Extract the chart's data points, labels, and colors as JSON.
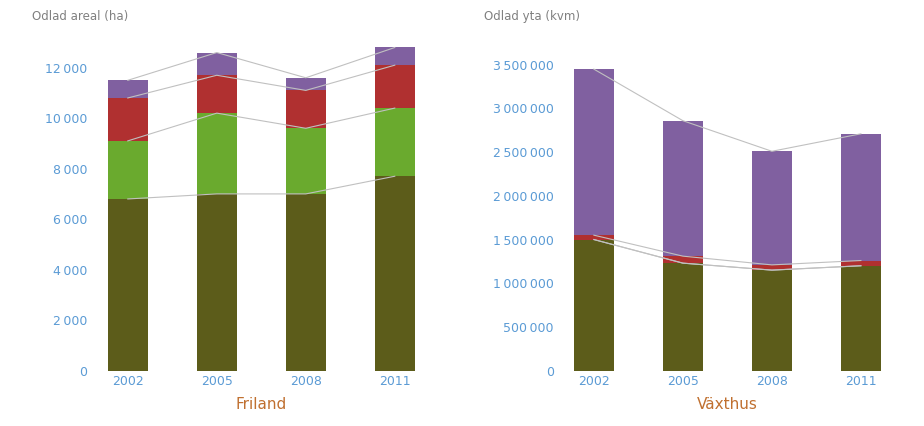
{
  "years": [
    2002,
    2005,
    2008,
    2011
  ],
  "friland": {
    "koksvaxter": [
      6800,
      7000,
      7000,
      7700
    ],
    "frukt": [
      2300,
      3200,
      2600,
      2700
    ],
    "bar": [
      1700,
      1500,
      1500,
      1700
    ],
    "prydnad": [
      700,
      900,
      500,
      700
    ]
  },
  "vaxthus": {
    "koksvaxter": [
      1500000,
      1230000,
      1150000,
      1200000
    ],
    "frukt": [
      0,
      0,
      0,
      0
    ],
    "bar": [
      50000,
      80000,
      60000,
      60000
    ],
    "prydnad": [
      1900000,
      1550000,
      1300000,
      1450000
    ]
  },
  "colors": {
    "koksvaxter": "#5c5c1a",
    "frukt": "#6aaa2e",
    "bar": "#b03030",
    "prydnad": "#8060a0"
  },
  "friland_ylabel": "Odlad areal (ha)",
  "vaxthus_ylabel": "Odlad yta (kvm)",
  "friland_title": "Friland",
  "vaxthus_title": "Växthus",
  "friland_ylim": [
    0,
    13500
  ],
  "vaxthus_ylim": [
    0,
    3900000
  ],
  "friland_yticks": [
    0,
    2000,
    4000,
    6000,
    8000,
    10000,
    12000
  ],
  "vaxthus_yticks": [
    0,
    500000,
    1000000,
    1500000,
    2000000,
    2500000,
    3000000,
    3500000
  ],
  "axis_color": "#5b9bd5",
  "title_color": "#c07030",
  "ylabel_color": "#808080",
  "line_color": "#c0c0c0"
}
